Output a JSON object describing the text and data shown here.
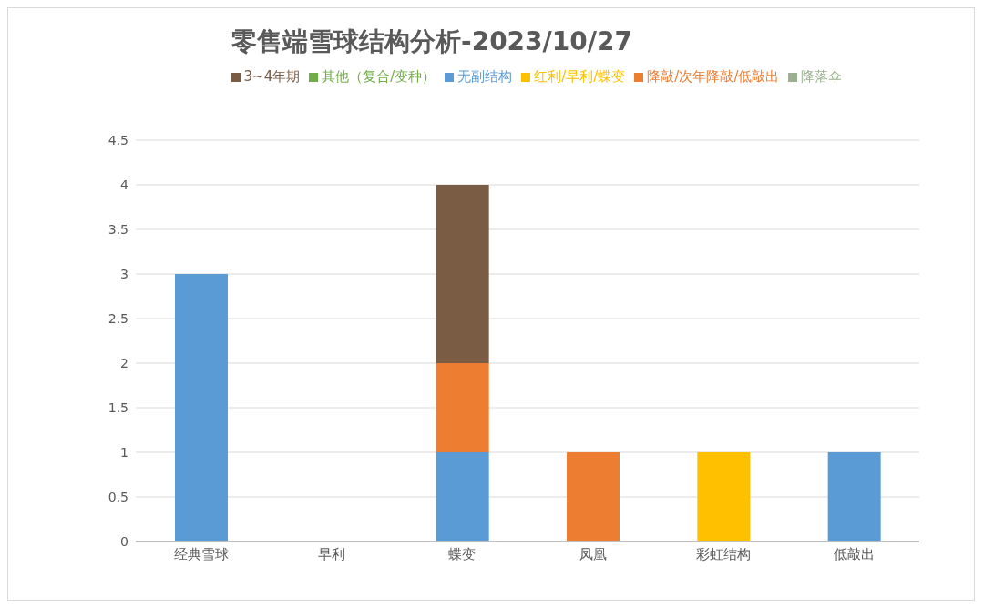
{
  "chart_data": {
    "type": "bar",
    "title": "零售端雪球结构分析-2023/10/27",
    "stacked": true,
    "categories": [
      "经典雪球",
      "早利",
      "蝶变",
      "凤凰",
      "彩虹结构",
      "低敲出"
    ],
    "series": [
      {
        "name": "无副结构",
        "color": "#5b9bd5",
        "values": [
          3,
          0,
          1,
          0,
          0,
          1
        ]
      },
      {
        "name": "降敲/次年降敲/低敲出",
        "color": "#ed7d31",
        "values": [
          0,
          0,
          1,
          1,
          0,
          0
        ]
      },
      {
        "name": "降落伞",
        "color": "#9bb08f",
        "values": [
          0,
          0,
          0,
          0,
          0,
          0
        ]
      },
      {
        "name": "3~4年期",
        "color": "#7a5c45",
        "values": [
          0,
          0,
          2,
          0,
          0,
          0
        ]
      },
      {
        "name": "其他（复合/变种）",
        "color": "#70ad47",
        "values": [
          0,
          0,
          0,
          0,
          0,
          0
        ]
      },
      {
        "name": "红利/早利/蝶变",
        "color": "#ffc000",
        "values": [
          0,
          0,
          0,
          0,
          1,
          0
        ]
      }
    ],
    "ylim": [
      0,
      4.5
    ],
    "yticks": [
      0,
      0.5,
      1,
      1.5,
      2,
      2.5,
      3,
      3.5,
      4,
      4.5
    ],
    "grid": "y",
    "legend": "top"
  }
}
